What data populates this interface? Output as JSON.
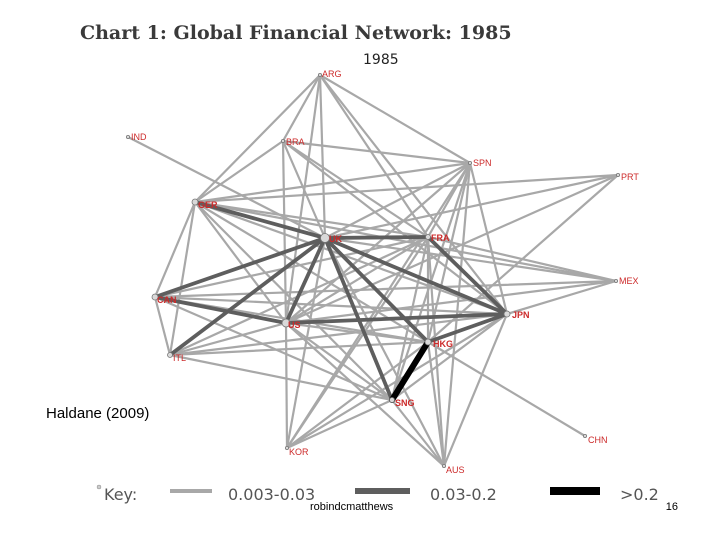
{
  "chart_title": "Chart 1: Global Financial Network: 1985",
  "year_label": "1985",
  "citation": "Haldane (2009)",
  "footer": {
    "author": "robindcmatthews",
    "page_number": "16"
  },
  "key": {
    "label": "Key:",
    "entries": [
      {
        "range": "0.003-0.03",
        "color": "#a8a8a8"
      },
      {
        "range": "0.03-0.2",
        "color": "#5e5e5e"
      },
      {
        "range": ">0.2",
        "color": "#000000"
      }
    ]
  },
  "nodes": [
    {
      "id": "ARG",
      "label": "ARG"
    },
    {
      "id": "IND",
      "label": "IND"
    },
    {
      "id": "BRA",
      "label": "BRA"
    },
    {
      "id": "SPN",
      "label": "SPN"
    },
    {
      "id": "PRT",
      "label": "PRT"
    },
    {
      "id": "GER",
      "label": "GER"
    },
    {
      "id": "UK",
      "label": "UK"
    },
    {
      "id": "FRA",
      "label": "FRA"
    },
    {
      "id": "MEX",
      "label": "MEX"
    },
    {
      "id": "CAN",
      "label": "CAN"
    },
    {
      "id": "US",
      "label": "US"
    },
    {
      "id": "JPN",
      "label": "JPN"
    },
    {
      "id": "ITL",
      "label": "ITL"
    },
    {
      "id": "HKG",
      "label": "HKG"
    },
    {
      "id": "SNG",
      "label": "SNG"
    },
    {
      "id": "KOR",
      "label": "KOR"
    },
    {
      "id": "CHN",
      "label": "CHN"
    },
    {
      "id": "AUS",
      "label": "AUS"
    }
  ],
  "edges": [
    {
      "from": "HKG",
      "to": "SNG",
      "weight": ">0.2"
    },
    {
      "from": "GER",
      "to": "UK",
      "weight": "0.03-0.2"
    },
    {
      "from": "UK",
      "to": "FRA",
      "weight": "0.03-0.2"
    },
    {
      "from": "UK",
      "to": "JPN",
      "weight": "0.03-0.2"
    },
    {
      "from": "UK",
      "to": "CAN",
      "weight": "0.03-0.2"
    },
    {
      "from": "UK",
      "to": "US",
      "weight": "0.03-0.2"
    },
    {
      "from": "UK",
      "to": "HKG",
      "weight": "0.03-0.2"
    },
    {
      "from": "UK",
      "to": "SNG",
      "weight": "0.03-0.2"
    },
    {
      "from": "UK",
      "to": "ITL",
      "weight": "0.03-0.2"
    },
    {
      "from": "FRA",
      "to": "JPN",
      "weight": "0.03-0.2"
    },
    {
      "from": "US",
      "to": "JPN",
      "weight": "0.03-0.2"
    },
    {
      "from": "CAN",
      "to": "US",
      "weight": "0.03-0.2"
    },
    {
      "from": "JPN",
      "to": "HKG",
      "weight": "0.03-0.2"
    },
    {
      "from": "ARG",
      "to": "GER",
      "weight": "0.003-0.03"
    },
    {
      "from": "ARG",
      "to": "BRA",
      "weight": "0.003-0.03"
    },
    {
      "from": "ARG",
      "to": "SPN",
      "weight": "0.003-0.03"
    },
    {
      "from": "ARG",
      "to": "UK",
      "weight": "0.003-0.03"
    },
    {
      "from": "ARG",
      "to": "FRA",
      "weight": "0.003-0.03"
    },
    {
      "from": "ARG",
      "to": "JPN",
      "weight": "0.003-0.03"
    },
    {
      "from": "ARG",
      "to": "US",
      "weight": "0.003-0.03"
    },
    {
      "from": "IND",
      "to": "UK",
      "weight": "0.003-0.03"
    },
    {
      "from": "BRA",
      "to": "UK",
      "weight": "0.003-0.03"
    },
    {
      "from": "BRA",
      "to": "FRA",
      "weight": "0.003-0.03"
    },
    {
      "from": "BRA",
      "to": "US",
      "weight": "0.003-0.03"
    },
    {
      "from": "BRA",
      "to": "JPN",
      "weight": "0.003-0.03"
    },
    {
      "from": "BRA",
      "to": "GER",
      "weight": "0.003-0.03"
    },
    {
      "from": "BRA",
      "to": "SPN",
      "weight": "0.003-0.03"
    },
    {
      "from": "SPN",
      "to": "GER",
      "weight": "0.003-0.03"
    },
    {
      "from": "SPN",
      "to": "UK",
      "weight": "0.003-0.03"
    },
    {
      "from": "SPN",
      "to": "FRA",
      "weight": "0.003-0.03"
    },
    {
      "from": "SPN",
      "to": "JPN",
      "weight": "0.003-0.03"
    },
    {
      "from": "SPN",
      "to": "US",
      "weight": "0.003-0.03"
    },
    {
      "from": "SPN",
      "to": "HKG",
      "weight": "0.003-0.03"
    },
    {
      "from": "SPN",
      "to": "SNG",
      "weight": "0.003-0.03"
    },
    {
      "from": "SPN",
      "to": "KOR",
      "weight": "0.003-0.03"
    },
    {
      "from": "SPN",
      "to": "AUS",
      "weight": "0.003-0.03"
    },
    {
      "from": "PRT",
      "to": "GER",
      "weight": "0.003-0.03"
    },
    {
      "from": "PRT",
      "to": "UK",
      "weight": "0.003-0.03"
    },
    {
      "from": "PRT",
      "to": "US",
      "weight": "0.003-0.03"
    },
    {
      "from": "PRT",
      "to": "HKG",
      "weight": "0.003-0.03"
    },
    {
      "from": "GER",
      "to": "FRA",
      "weight": "0.003-0.03"
    },
    {
      "from": "GER",
      "to": "CAN",
      "weight": "0.003-0.03"
    },
    {
      "from": "GER",
      "to": "US",
      "weight": "0.003-0.03"
    },
    {
      "from": "GER",
      "to": "ITL",
      "weight": "0.003-0.03"
    },
    {
      "from": "GER",
      "to": "JPN",
      "weight": "0.003-0.03"
    },
    {
      "from": "GER",
      "to": "HKG",
      "weight": "0.003-0.03"
    },
    {
      "from": "GER",
      "to": "SNG",
      "weight": "0.003-0.03"
    },
    {
      "from": "UK",
      "to": "MEX",
      "weight": "0.003-0.03"
    },
    {
      "from": "UK",
      "to": "KOR",
      "weight": "0.003-0.03"
    },
    {
      "from": "UK",
      "to": "AUS",
      "weight": "0.003-0.03"
    },
    {
      "from": "FRA",
      "to": "MEX",
      "weight": "0.003-0.03"
    },
    {
      "from": "FRA",
      "to": "CAN",
      "weight": "0.003-0.03"
    },
    {
      "from": "FRA",
      "to": "US",
      "weight": "0.003-0.03"
    },
    {
      "from": "FRA",
      "to": "ITL",
      "weight": "0.003-0.03"
    },
    {
      "from": "FRA",
      "to": "HKG",
      "weight": "0.003-0.03"
    },
    {
      "from": "FRA",
      "to": "SNG",
      "weight": "0.003-0.03"
    },
    {
      "from": "FRA",
      "to": "KOR",
      "weight": "0.003-0.03"
    },
    {
      "from": "FRA",
      "to": "AUS",
      "weight": "0.003-0.03"
    },
    {
      "from": "MEX",
      "to": "US",
      "weight": "0.003-0.03"
    },
    {
      "from": "MEX",
      "to": "JPN",
      "weight": "0.003-0.03"
    },
    {
      "from": "MEX",
      "to": "CAN",
      "weight": "0.003-0.03"
    },
    {
      "from": "MEX",
      "to": "GER",
      "weight": "0.003-0.03"
    },
    {
      "from": "CAN",
      "to": "ITL",
      "weight": "0.003-0.03"
    },
    {
      "from": "CAN",
      "to": "JPN",
      "weight": "0.003-0.03"
    },
    {
      "from": "CAN",
      "to": "HKG",
      "weight": "0.003-0.03"
    },
    {
      "from": "CAN",
      "to": "SNG",
      "weight": "0.003-0.03"
    },
    {
      "from": "US",
      "to": "ITL",
      "weight": "0.003-0.03"
    },
    {
      "from": "US",
      "to": "HKG",
      "weight": "0.003-0.03"
    },
    {
      "from": "US",
      "to": "SNG",
      "weight": "0.003-0.03"
    },
    {
      "from": "US",
      "to": "KOR",
      "weight": "0.003-0.03"
    },
    {
      "from": "US",
      "to": "AUS",
      "weight": "0.003-0.03"
    },
    {
      "from": "JPN",
      "to": "ITL",
      "weight": "0.003-0.03"
    },
    {
      "from": "JPN",
      "to": "SNG",
      "weight": "0.003-0.03"
    },
    {
      "from": "JPN",
      "to": "KOR",
      "weight": "0.003-0.03"
    },
    {
      "from": "JPN",
      "to": "AUS",
      "weight": "0.003-0.03"
    },
    {
      "from": "ITL",
      "to": "HKG",
      "weight": "0.003-0.03"
    },
    {
      "from": "ITL",
      "to": "SNG",
      "weight": "0.003-0.03"
    },
    {
      "from": "HKG",
      "to": "KOR",
      "weight": "0.003-0.03"
    },
    {
      "from": "HKG",
      "to": "AUS",
      "weight": "0.003-0.03"
    },
    {
      "from": "HKG",
      "to": "CHN",
      "weight": "0.003-0.03"
    },
    {
      "from": "SNG",
      "to": "KOR",
      "weight": "0.003-0.03"
    },
    {
      "from": "SNG",
      "to": "AUS",
      "weight": "0.003-0.03"
    }
  ]
}
